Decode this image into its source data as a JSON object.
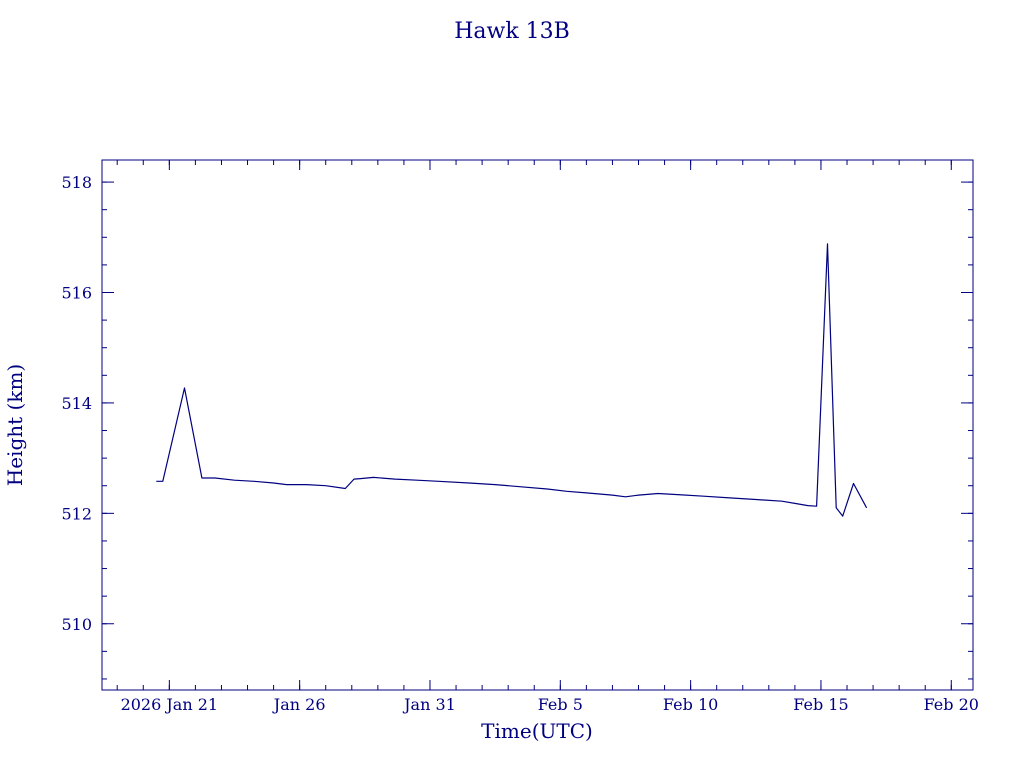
{
  "chart_data": {
    "type": "line",
    "title": "Hawk 13B",
    "xlabel": "Time(UTC)",
    "ylabel": "Height (km)",
    "x_unit": "date",
    "xlim": [
      "2026-01-18T10:00",
      "2026-02-20T20:00"
    ],
    "ylim": [
      508.8,
      518.4
    ],
    "color": "#000080",
    "grid": false,
    "x_ticks": [
      {
        "date": "2026-01-21",
        "label": "2026 Jan 21"
      },
      {
        "date": "2026-01-26",
        "label": "Jan 26"
      },
      {
        "date": "2026-01-31",
        "label": "Jan 31"
      },
      {
        "date": "2026-02-05",
        "label": "Feb  5"
      },
      {
        "date": "2026-02-10",
        "label": "Feb 10"
      },
      {
        "date": "2026-02-15",
        "label": "Feb 15"
      },
      {
        "date": "2026-02-20",
        "label": "Feb 20"
      }
    ],
    "y_ticks": [
      510,
      512,
      514,
      516,
      518
    ],
    "y_tick_labels": [
      "510",
      "512",
      "514",
      "516",
      "518"
    ],
    "series": [
      {
        "x": [
          "2026-01-20T12:00",
          "2026-01-20T18:00",
          "2026-01-21T14:00",
          "2026-01-22T06:00",
          "2026-01-22T18:00",
          "2026-01-23T12:00",
          "2026-01-24T06:00",
          "2026-01-25T00:00",
          "2026-01-25T12:00",
          "2026-01-26T06:00",
          "2026-01-27T00:00",
          "2026-01-27T18:00",
          "2026-01-28T02:00",
          "2026-01-28T08:00",
          "2026-01-28T20:00",
          "2026-01-29T16:00",
          "2026-01-30T12:00",
          "2026-01-31T08:00",
          "2026-02-01T12:00",
          "2026-02-02T12:00",
          "2026-02-03T12:00",
          "2026-02-04T12:00",
          "2026-02-05T06:00",
          "2026-02-06T00:00",
          "2026-02-07T00:00",
          "2026-02-07T12:00",
          "2026-02-08T00:00",
          "2026-02-08T18:00",
          "2026-02-09T12:00",
          "2026-02-10T12:00",
          "2026-02-11T12:00",
          "2026-02-12T12:00",
          "2026-02-13T12:00",
          "2026-02-14T00:00",
          "2026-02-14T12:00",
          "2026-02-14T20:00",
          "2026-02-15T06:00",
          "2026-02-15T14:00",
          "2026-02-15T20:00",
          "2026-02-16T06:00",
          "2026-02-16T18:00"
        ],
        "y": [
          512.58,
          512.58,
          514.27,
          512.64,
          512.64,
          512.6,
          512.58,
          512.55,
          512.52,
          512.52,
          512.5,
          512.45,
          512.62,
          512.63,
          512.65,
          512.62,
          512.6,
          512.58,
          512.55,
          512.52,
          512.48,
          512.44,
          512.4,
          512.37,
          512.33,
          512.3,
          512.33,
          512.36,
          512.34,
          512.31,
          512.28,
          512.25,
          512.22,
          512.18,
          512.14,
          512.13,
          516.88,
          512.1,
          511.95,
          512.54,
          512.1
        ]
      }
    ]
  }
}
